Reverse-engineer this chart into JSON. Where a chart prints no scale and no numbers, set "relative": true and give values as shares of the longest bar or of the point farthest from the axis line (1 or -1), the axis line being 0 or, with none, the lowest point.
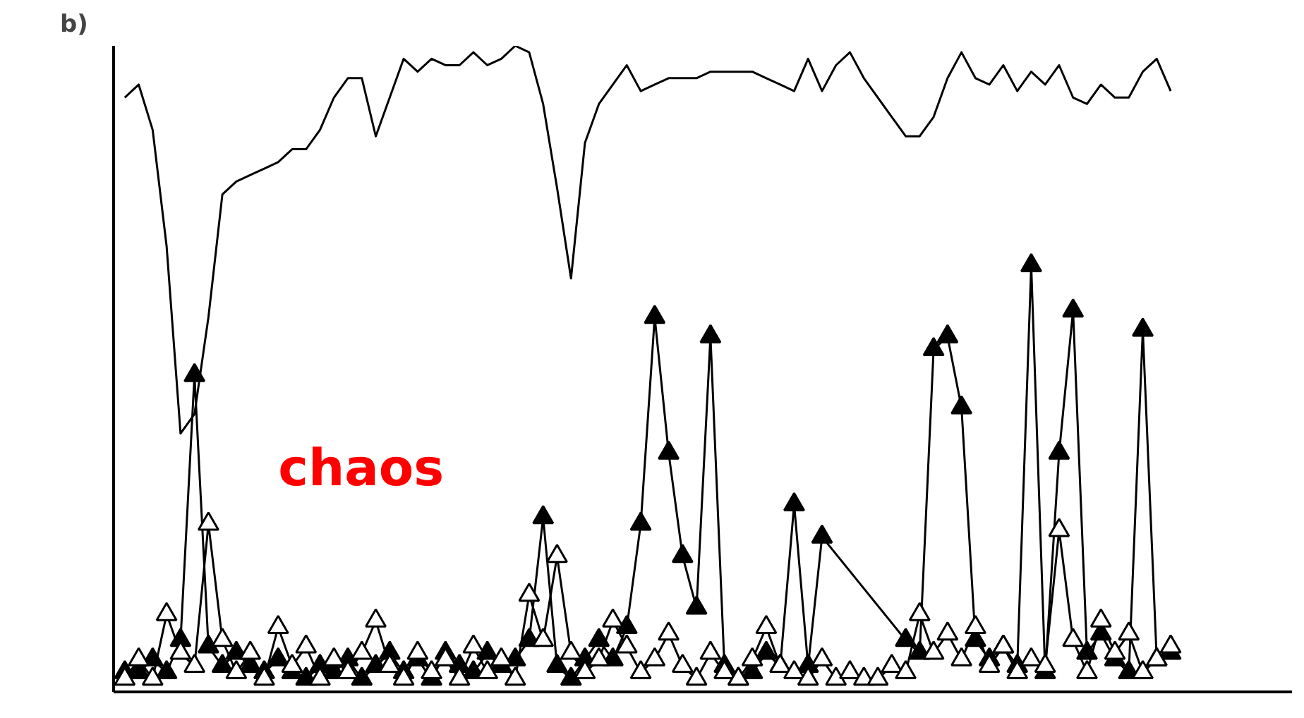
{
  "chart_data": {
    "type": "line",
    "relative": true,
    "categories": [
      null,
      null,
      null,
      null,
      null,
      null,
      null,
      null,
      null,
      null,
      null,
      null,
      null,
      null,
      null,
      null,
      null,
      null,
      null,
      null,
      null,
      null,
      null,
      null,
      null,
      null,
      null,
      null,
      null,
      null,
      null,
      null,
      null,
      null,
      null,
      null,
      null,
      null,
      null,
      null,
      null,
      null,
      null,
      null,
      null,
      null,
      null,
      null,
      null,
      null,
      null,
      null,
      null,
      null,
      null,
      null,
      null,
      null,
      null,
      null,
      null,
      null,
      null,
      null,
      null,
      null,
      null,
      null,
      null,
      null,
      null,
      null,
      null,
      null,
      null,
      null
    ],
    "series": [
      {
        "color": "#000000",
        "marker": "none",
        "values": [
          0.92,
          0.94,
          0.87,
          0.69,
          0.4,
          0.43,
          0.58,
          0.77,
          0.79,
          0.8,
          0.81,
          0.82,
          0.84,
          0.84,
          0.87,
          0.92,
          0.95,
          0.95,
          0.86,
          0.92,
          0.98,
          0.96,
          0.98,
          0.97,
          0.97,
          0.99,
          0.97,
          0.98,
          1.0,
          0.99,
          0.91,
          0.78,
          0.64,
          0.85,
          0.91,
          0.94,
          0.97,
          0.93,
          0.94,
          0.95,
          0.95,
          0.95,
          0.96,
          0.96,
          0.96,
          0.96,
          0.95,
          0.94,
          0.93,
          0.98,
          0.93,
          0.97,
          0.99,
          0.95,
          0.92,
          0.89,
          0.86,
          0.86,
          0.89,
          0.95,
          0.99,
          0.95,
          0.94,
          0.97,
          0.93,
          0.96,
          0.94,
          0.97,
          0.92,
          0.91,
          0.94,
          0.92,
          0.92,
          0.96,
          0.98,
          0.93
        ]
      },
      {
        "color": "#000000",
        "marker": "triangle",
        "values": [
          0.03,
          0.03,
          0.05,
          0.03,
          0.08,
          0.49,
          0.07,
          0.04,
          0.06,
          0.04,
          0.03,
          0.05,
          0.03,
          0.02,
          0.04,
          0.03,
          0.05,
          0.02,
          0.04,
          0.06,
          0.03,
          0.05,
          0.02,
          0.06,
          0.04,
          0.03,
          0.06,
          0.04,
          0.05,
          0.08,
          0.27,
          0.04,
          0.02,
          0.05,
          0.08,
          0.05,
          0.1,
          0.26,
          0.58,
          0.37,
          0.21,
          0.13,
          0.55,
          0.04,
          0.02,
          0.03,
          0.06,
          0.04,
          0.29,
          0.04,
          0.24,
          null,
          null,
          null,
          null,
          null,
          0.08,
          0.06,
          0.53,
          0.55,
          0.44,
          0.08,
          0.05,
          0.07,
          0.04,
          0.66,
          0.03,
          0.37,
          0.59,
          0.06,
          0.09,
          0.05,
          0.03,
          0.56,
          0.05,
          0.06
        ]
      },
      {
        "color": "#000000",
        "marker": "triangle",
        "values": [
          0.02,
          0.05,
          0.02,
          0.12,
          0.06,
          0.04,
          0.26,
          0.08,
          0.03,
          0.06,
          0.02,
          0.1,
          0.04,
          0.07,
          0.02,
          0.05,
          0.03,
          0.06,
          0.11,
          0.04,
          0.02,
          0.06,
          0.03,
          0.05,
          0.02,
          0.07,
          0.03,
          0.05,
          0.02,
          0.15,
          0.08,
          0.21,
          0.06,
          0.03,
          0.05,
          0.11,
          0.07,
          0.03,
          0.05,
          0.09,
          0.04,
          0.02,
          0.06,
          0.03,
          0.02,
          0.05,
          0.1,
          0.04,
          0.03,
          0.02,
          0.05,
          0.02,
          0.03,
          0.02,
          0.02,
          0.04,
          0.03,
          0.12,
          0.06,
          0.09,
          0.05,
          0.1,
          0.04,
          0.07,
          0.03,
          0.05,
          0.04,
          0.25,
          0.08,
          0.03,
          0.11,
          0.06,
          0.09,
          0.03,
          0.05,
          0.07
        ]
      }
    ],
    "annotations": [
      "b)",
      "chaos"
    ]
  }
}
